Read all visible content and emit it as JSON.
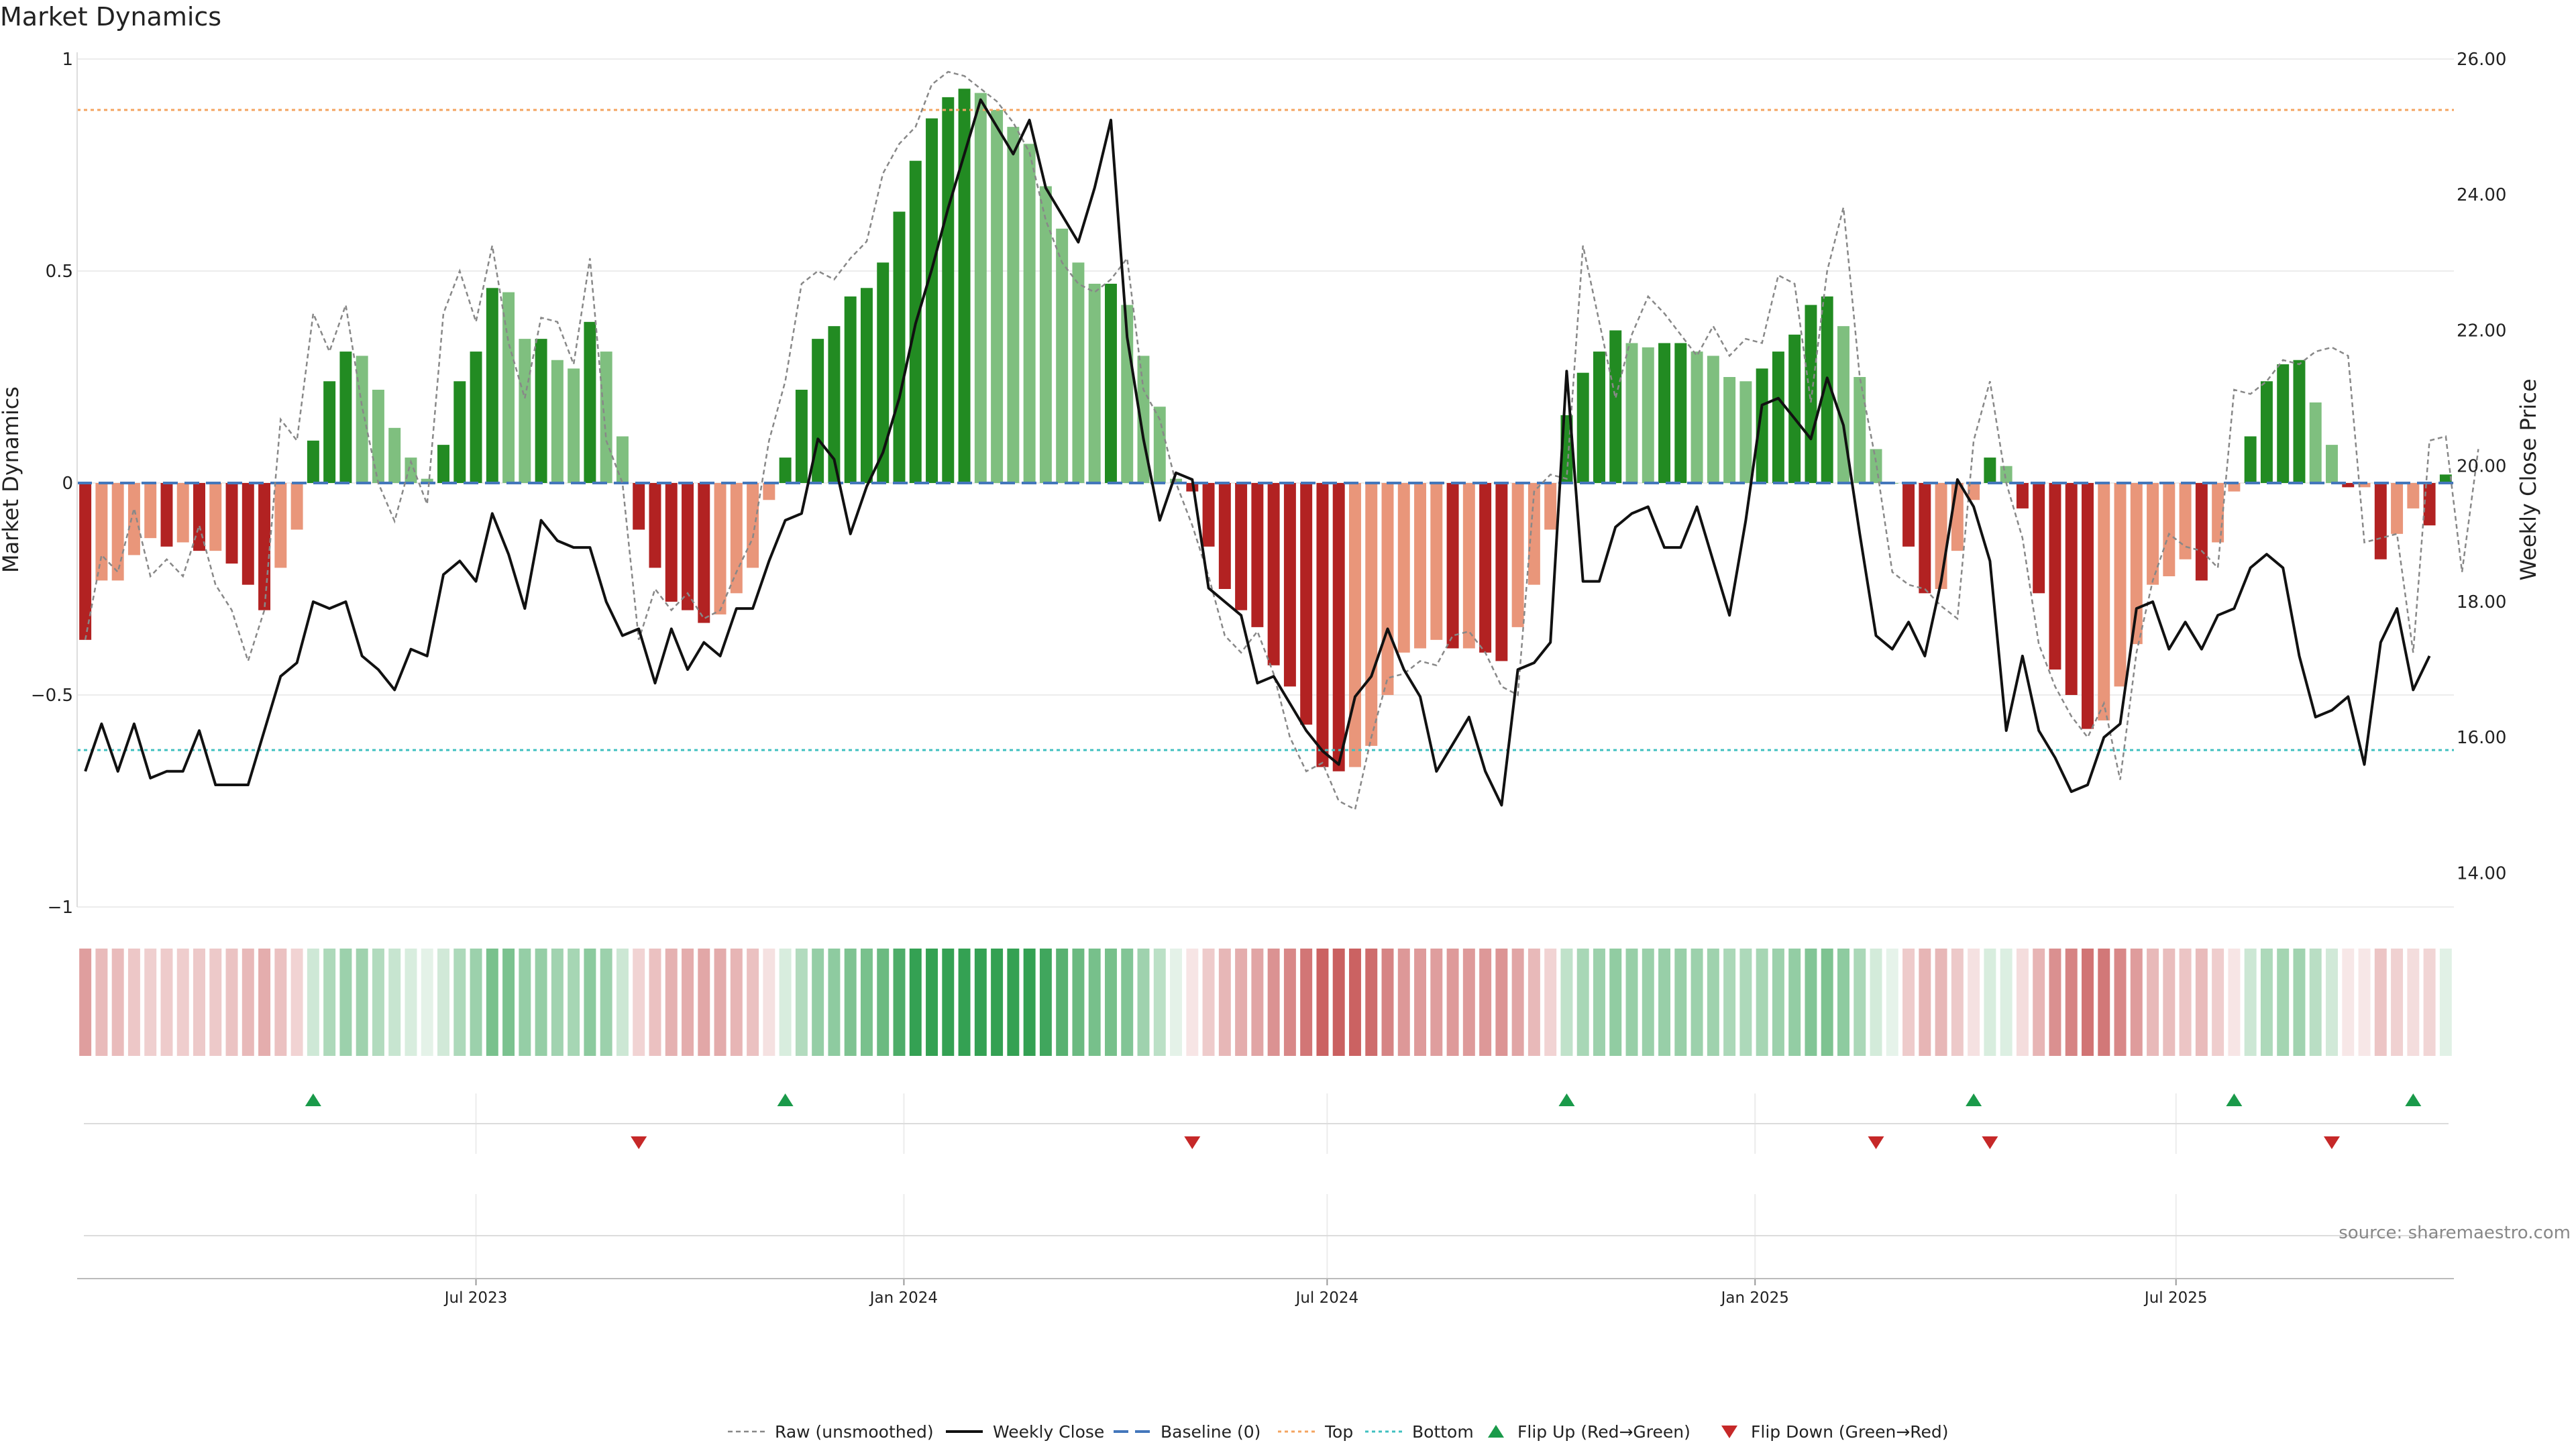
{
  "title": "Market Dynamics",
  "source": "source: sharemaestro.com",
  "colors": {
    "strong_green": "#228b22",
    "light_green": "#7fbf7f",
    "strong_red": "#b22222",
    "light_red": "#e9967a",
    "top": "#f4a460",
    "bottom": "#40c0c0",
    "baseline": "#4477bb",
    "raw": "#888888",
    "close": "#111111",
    "flip_up": "#1a9a4a",
    "flip_down": "#c62828"
  },
  "chart_data": {
    "type": "bar",
    "x_start": "2023-01-14",
    "x_step_days": 7,
    "left_axis": {
      "label": "Market Dynamics",
      "ylim": [
        -1,
        1
      ],
      "ticks": [
        "1",
        "0.5",
        "0",
        "−0.5",
        "−1"
      ],
      "tick_values": [
        1,
        0.5,
        0,
        -0.5,
        -1
      ]
    },
    "right_axis": {
      "label": "Weekly Close Price",
      "ylim": [
        13.5,
        26.0
      ],
      "ticks": [
        "26.00",
        "24.00",
        "22.00",
        "20.00",
        "18.00",
        "16.00",
        "14.00"
      ],
      "tick_values": [
        26,
        24,
        22,
        20,
        18,
        16,
        14
      ]
    },
    "x_ticks": [
      {
        "label": "Jul 2023",
        "date": "2023-07-01"
      },
      {
        "label": "Jan 2024",
        "date": "2024-01-01"
      },
      {
        "label": "Jul 2024",
        "date": "2024-07-01"
      },
      {
        "label": "Jan 2025",
        "date": "2025-01-01"
      },
      {
        "label": "Jul 2025",
        "date": "2025-07-01"
      }
    ],
    "top_line": 0.88,
    "bottom_line": -0.63,
    "dynamics": [
      -0.37,
      -0.23,
      -0.23,
      -0.17,
      -0.13,
      -0.15,
      -0.14,
      -0.16,
      -0.16,
      -0.19,
      -0.24,
      -0.3,
      -0.2,
      -0.11,
      0.1,
      0.24,
      0.31,
      0.3,
      0.22,
      0.13,
      0.06,
      0.01,
      0.09,
      0.24,
      0.31,
      0.46,
      0.45,
      0.34,
      0.34,
      0.29,
      0.27,
      0.38,
      0.31,
      0.11,
      -0.11,
      -0.2,
      -0.28,
      -0.3,
      -0.33,
      -0.31,
      -0.26,
      -0.2,
      -0.04,
      0.06,
      0.22,
      0.34,
      0.37,
      0.44,
      0.46,
      0.52,
      0.64,
      0.76,
      0.86,
      0.91,
      0.93,
      0.92,
      0.88,
      0.84,
      0.8,
      0.7,
      0.6,
      0.52,
      0.47,
      0.47,
      0.42,
      0.3,
      0.18,
      0.01,
      -0.02,
      -0.15,
      -0.25,
      -0.3,
      -0.34,
      -0.43,
      -0.48,
      -0.57,
      -0.67,
      -0.68,
      -0.67,
      -0.62,
      -0.5,
      -0.4,
      -0.39,
      -0.37,
      -0.39,
      -0.39,
      -0.4,
      -0.42,
      -0.34,
      -0.24,
      -0.11,
      0.16,
      0.26,
      0.31,
      0.36,
      0.33,
      0.32,
      0.33,
      0.33,
      0.31,
      0.3,
      0.25,
      0.24,
      0.27,
      0.31,
      0.35,
      0.42,
      0.44,
      0.37,
      0.25,
      0.08,
      0.0,
      -0.15,
      -0.26,
      -0.25,
      -0.16,
      -0.04,
      0.06,
      0.04,
      -0.06,
      -0.26,
      -0.44,
      -0.5,
      -0.58,
      -0.56,
      -0.48,
      -0.38,
      -0.24,
      -0.22,
      -0.18,
      -0.23,
      -0.14,
      -0.02,
      0.11,
      0.24,
      0.28,
      0.29,
      0.19,
      0.09,
      -0.01,
      -0.01,
      -0.18,
      -0.12,
      -0.06,
      -0.1,
      0.02
    ],
    "raw": [
      -0.37,
      -0.17,
      -0.21,
      -0.06,
      -0.22,
      -0.18,
      -0.22,
      -0.1,
      -0.24,
      -0.3,
      -0.42,
      -0.3,
      0.15,
      0.1,
      0.4,
      0.31,
      0.42,
      0.18,
      0.0,
      -0.09,
      0.05,
      -0.05,
      0.4,
      0.5,
      0.38,
      0.56,
      0.33,
      0.2,
      0.39,
      0.38,
      0.28,
      0.53,
      0.1,
      0.0,
      -0.37,
      -0.25,
      -0.3,
      -0.26,
      -0.32,
      -0.3,
      -0.21,
      -0.13,
      0.1,
      0.24,
      0.47,
      0.5,
      0.48,
      0.53,
      0.57,
      0.73,
      0.8,
      0.84,
      0.94,
      0.97,
      0.96,
      0.93,
      0.9,
      0.85,
      0.78,
      0.62,
      0.52,
      0.47,
      0.45,
      0.48,
      0.53,
      0.22,
      0.15,
      0.0,
      -0.1,
      -0.22,
      -0.36,
      -0.4,
      -0.35,
      -0.45,
      -0.6,
      -0.68,
      -0.66,
      -0.75,
      -0.77,
      -0.6,
      -0.46,
      -0.45,
      -0.42,
      -0.43,
      -0.36,
      -0.35,
      -0.4,
      -0.48,
      -0.5,
      -0.02,
      0.02,
      0.01,
      0.56,
      0.38,
      0.2,
      0.35,
      0.44,
      0.4,
      0.35,
      0.3,
      0.37,
      0.3,
      0.34,
      0.33,
      0.49,
      0.47,
      0.19,
      0.5,
      0.65,
      0.25,
      0.05,
      -0.21,
      -0.24,
      -0.25,
      -0.29,
      -0.32,
      0.1,
      0.24,
      0.0,
      -0.13,
      -0.38,
      -0.48,
      -0.55,
      -0.6,
      -0.52,
      -0.7,
      -0.4,
      -0.23,
      -0.12,
      -0.15,
      -0.16,
      -0.2,
      0.22,
      0.21,
      0.24,
      0.29,
      0.28,
      0.31,
      0.32,
      0.3,
      -0.14,
      -0.13,
      -0.12,
      -0.4,
      0.1,
      0.11,
      -0.21,
      0.08
    ],
    "close": [
      15.5,
      16.2,
      15.5,
      16.2,
      15.4,
      15.5,
      15.5,
      16.1,
      15.3,
      15.3,
      15.3,
      16.1,
      16.9,
      17.1,
      18.0,
      17.9,
      18.0,
      17.2,
      17.0,
      16.7,
      17.3,
      17.2,
      18.4,
      18.6,
      18.3,
      19.3,
      18.7,
      17.9,
      19.2,
      18.9,
      18.8,
      18.8,
      18.0,
      17.5,
      17.6,
      16.8,
      17.6,
      17.0,
      17.4,
      17.2,
      17.9,
      17.9,
      18.6,
      19.2,
      19.3,
      20.4,
      20.1,
      19.0,
      19.7,
      20.2,
      21.0,
      22.1,
      22.9,
      23.8,
      24.6,
      25.4,
      25.0,
      24.6,
      25.1,
      24.1,
      23.7,
      23.3,
      24.1,
      25.1,
      21.9,
      20.4,
      19.2,
      19.9,
      19.8,
      18.2,
      18.0,
      17.8,
      16.8,
      16.9,
      16.5,
      16.1,
      15.8,
      15.6,
      16.6,
      16.9,
      17.6,
      17.0,
      16.6,
      15.5,
      15.9,
      16.3,
      15.5,
      15.0,
      17.0,
      17.1,
      17.4,
      21.4,
      18.3,
      18.3,
      19.1,
      19.3,
      19.4,
      18.8,
      18.8,
      19.4,
      18.6,
      17.8,
      19.2,
      20.9,
      21.0,
      20.7,
      20.4,
      21.3,
      20.6,
      19.0,
      17.5,
      17.3,
      17.7,
      17.2,
      18.3,
      19.8,
      19.4,
      18.6,
      16.1,
      17.2,
      16.1,
      15.7,
      15.2,
      15.3,
      16.0,
      16.2,
      17.9,
      18.0,
      17.3,
      17.7,
      17.3,
      17.8,
      17.9,
      18.5,
      18.7,
      18.5,
      17.2,
      16.3,
      16.4,
      16.6,
      15.6,
      17.4,
      17.9,
      16.7,
      17.2
    ],
    "heat_strip": "one tile per week colored by the dynamics value",
    "flip_up_indices": [
      14,
      43,
      91,
      116,
      132,
      143
    ],
    "flip_down_indices": [
      34,
      68,
      110,
      117,
      138
    ],
    "legend": [
      {
        "label": "Raw (unsmoothed)",
        "style": "raw"
      },
      {
        "label": "Weekly Close",
        "style": "close"
      },
      {
        "label": "Baseline (0)",
        "style": "baseline"
      },
      {
        "label": "Top",
        "style": "top"
      },
      {
        "label": "Bottom",
        "style": "bottom"
      },
      {
        "label": "Flip Up (Red→Green)",
        "style": "flip_up"
      },
      {
        "label": "Flip Down (Green→Red)",
        "style": "flip_down"
      }
    ],
    "legend_position": "bottom-center",
    "grid": true
  }
}
